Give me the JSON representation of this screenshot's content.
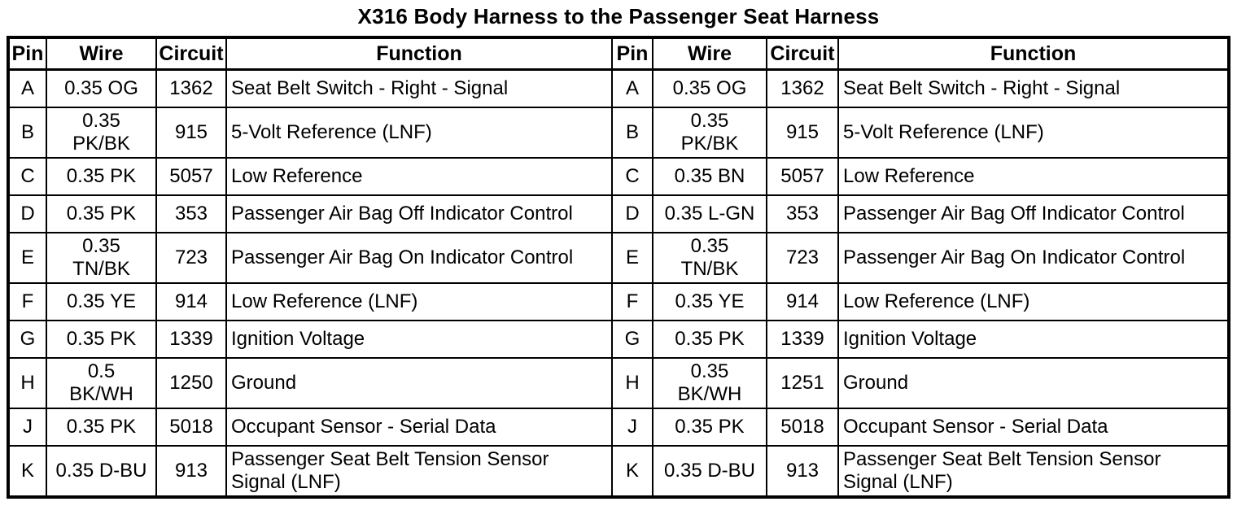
{
  "page_title": "X316 Body Harness to the Passenger Seat Harness",
  "columns": [
    "Pin",
    "Wire",
    "Circuit",
    "Function"
  ],
  "left_table": {
    "rows": [
      {
        "pin": "A",
        "wire": "0.35 OG",
        "circuit": "1362",
        "function": "Seat Belt Switch - Right - Signal"
      },
      {
        "pin": "B",
        "wire": "0.35\nPK/BK",
        "circuit": "915",
        "function": "5-Volt Reference (LNF)"
      },
      {
        "pin": "C",
        "wire": "0.35 PK",
        "circuit": "5057",
        "function": "Low Reference"
      },
      {
        "pin": "D",
        "wire": "0.35 PK",
        "circuit": "353",
        "function": "Passenger Air Bag Off Indicator Control"
      },
      {
        "pin": "E",
        "wire": "0.35\nTN/BK",
        "circuit": "723",
        "function": "Passenger Air Bag On Indicator Control"
      },
      {
        "pin": "F",
        "wire": "0.35 YE",
        "circuit": "914",
        "function": "Low Reference (LNF)"
      },
      {
        "pin": "G",
        "wire": "0.35 PK",
        "circuit": "1339",
        "function": "Ignition Voltage"
      },
      {
        "pin": "H",
        "wire": "0.5\nBK/WH",
        "circuit": "1250",
        "function": "Ground"
      },
      {
        "pin": "J",
        "wire": "0.35 PK",
        "circuit": "5018",
        "function": "Occupant Sensor - Serial Data"
      },
      {
        "pin": "K",
        "wire": "0.35 D-BU",
        "circuit": "913",
        "function": "Passenger Seat Belt Tension Sensor\nSignal (LNF)"
      }
    ]
  },
  "right_table": {
    "rows": [
      {
        "pin": "A",
        "wire": "0.35 OG",
        "circuit": "1362",
        "function": "Seat Belt Switch - Right - Signal"
      },
      {
        "pin": "B",
        "wire": "0.35\nPK/BK",
        "circuit": "915",
        "function": "5-Volt Reference (LNF)"
      },
      {
        "pin": "C",
        "wire": "0.35 BN",
        "circuit": "5057",
        "function": "Low Reference"
      },
      {
        "pin": "D",
        "wire": "0.35 L-GN",
        "circuit": "353",
        "function": "Passenger Air Bag Off Indicator Control"
      },
      {
        "pin": "E",
        "wire": "0.35\nTN/BK",
        "circuit": "723",
        "function": "Passenger Air Bag On Indicator Control"
      },
      {
        "pin": "F",
        "wire": "0.35 YE",
        "circuit": "914",
        "function": "Low Reference (LNF)"
      },
      {
        "pin": "G",
        "wire": "0.35 PK",
        "circuit": "1339",
        "function": "Ignition Voltage"
      },
      {
        "pin": "H",
        "wire": "0.35\nBK/WH",
        "circuit": "1251",
        "function": "Ground"
      },
      {
        "pin": "J",
        "wire": "0.35 PK",
        "circuit": "5018",
        "function": "Occupant Sensor - Serial Data"
      },
      {
        "pin": "K",
        "wire": "0.35 D-BU",
        "circuit": "913",
        "function": "Passenger Seat Belt Tension Sensor\nSignal (LNF)"
      }
    ]
  }
}
